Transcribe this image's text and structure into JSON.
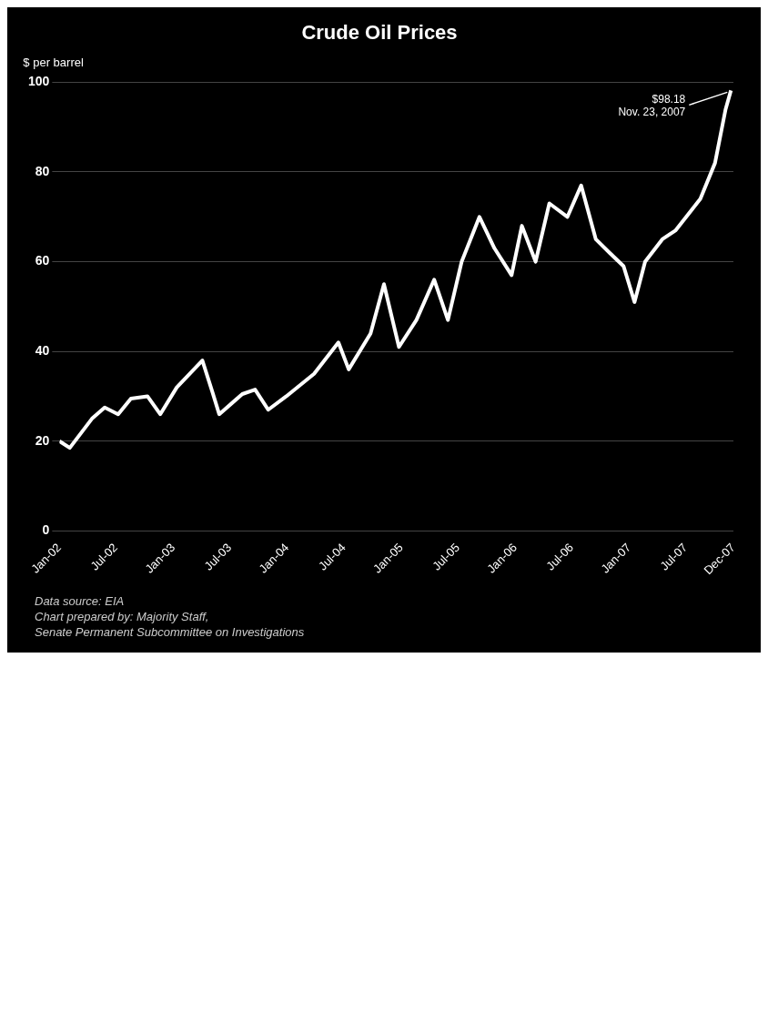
{
  "chart_data": {
    "type": "line",
    "title": "Crude Oil Prices",
    "ylabel": "$ per barrel",
    "x": [
      "2002-01-01",
      "2002-02-03",
      "2002-04-15",
      "2002-05-26",
      "2002-07-08",
      "2002-08-18",
      "2002-10-10",
      "2002-11-20",
      "2003-01-12",
      "2003-04-04",
      "2003-05-06",
      "2003-05-28",
      "2003-08-10",
      "2003-09-20",
      "2003-11-01",
      "2003-12-29",
      "2004-03-27",
      "2004-06-13",
      "2004-07-16",
      "2004-09-24",
      "2004-11-06",
      "2004-12-24",
      "2005-02-18",
      "2005-04-16",
      "2005-05-30",
      "2005-07-13",
      "2005-09-08",
      "2005-10-26",
      "2005-12-20",
      "2006-01-22",
      "2006-03-07",
      "2006-04-20",
      "2006-06-17",
      "2006-07-31",
      "2006-09-16",
      "2006-10-30",
      "2006-12-14",
      "2007-01-18",
      "2007-02-21",
      "2007-04-17",
      "2007-05-30",
      "2007-08-17",
      "2007-10-03",
      "2007-11-06",
      "2007-11-23"
    ],
    "series": [
      {
        "color": "#ffffff",
        "values": [
          20,
          18.5,
          25,
          27.5,
          26,
          29.5,
          30,
          26,
          32,
          38,
          31,
          26,
          30.5,
          31.5,
          27,
          30,
          35,
          42,
          36,
          44,
          55,
          41,
          47,
          56,
          47,
          60,
          70,
          63,
          57,
          68,
          60,
          73,
          70,
          77,
          65,
          62,
          59,
          51,
          60,
          65,
          67,
          74,
          82,
          94,
          98.18
        ]
      }
    ],
    "xlim": [
      "2002-01-01",
      "2007-12-01"
    ],
    "xticks": [
      {
        "value": "2002-01-01",
        "label": "Jan-02"
      },
      {
        "value": "2002-07-01",
        "label": "Jul-02"
      },
      {
        "value": "2003-01-01",
        "label": "Jan-03"
      },
      {
        "value": "2003-07-01",
        "label": "Jul-03"
      },
      {
        "value": "2004-01-01",
        "label": "Jan-04"
      },
      {
        "value": "2004-07-01",
        "label": "Jul-04"
      },
      {
        "value": "2005-01-01",
        "label": "Jan-05"
      },
      {
        "value": "2005-07-01",
        "label": "Jul-05"
      },
      {
        "value": "2006-01-01",
        "label": "Jan-06"
      },
      {
        "value": "2006-07-01",
        "label": "Jul-06"
      },
      {
        "value": "2007-01-01",
        "label": "Jan-07"
      },
      {
        "value": "2007-07-01",
        "label": "Jul-07"
      },
      {
        "value": "2007-12-01",
        "label": "Dec-07"
      }
    ],
    "ylim": [
      0,
      100
    ],
    "yticks": [
      0,
      20,
      40,
      60,
      80,
      100
    ],
    "grid": "y",
    "legend": false,
    "marker": "none",
    "line_style": "solid",
    "annotations": [
      {
        "text": "$98.18\nNov. 23, 2007",
        "x": "2007-11-23",
        "y": 98.18
      },
      "Data source:  EIA",
      "Chart prepared by:  Majority Staff,",
      "Senate Permanent Subcommittee on Investigations"
    ]
  }
}
